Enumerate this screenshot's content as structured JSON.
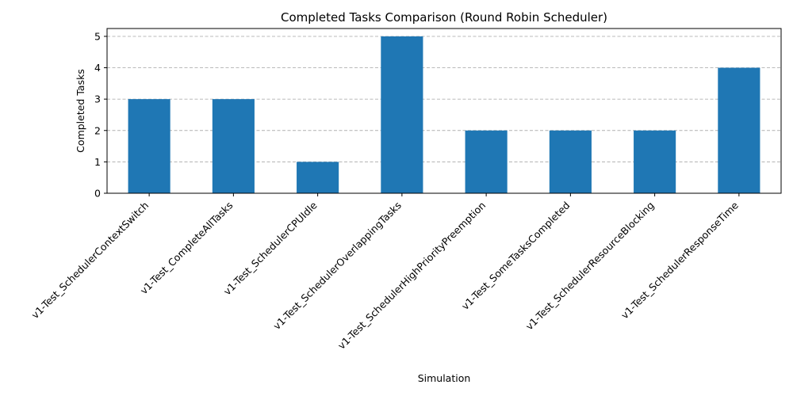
{
  "chart_data": {
    "type": "bar",
    "title": "Completed Tasks Comparison (Round Robin Scheduler)",
    "xlabel": "Simulation",
    "ylabel": "Completed Tasks",
    "categories": [
      "v1-Test_SchedulerContextSwitch",
      "v1-Test_CompleteAllTasks",
      "v1-Test_SchedulerCPUIdle",
      "v1-Test_SchedulerOverlappingTasks",
      "v1-Test_SchedulerHighPriorityPreemption",
      "v1-Test_SomeTasksCompleted",
      "v1-Test_SchedulerResourceBlocking",
      "v1-Test_SchedulerResponseTime"
    ],
    "values": [
      3,
      3,
      1,
      5,
      2,
      2,
      2,
      4
    ],
    "ylim": [
      0,
      5.25
    ],
    "yticks": [
      0,
      1,
      2,
      3,
      4,
      5
    ],
    "grid": "y-dashed",
    "bar_color": "#1f77b4",
    "grid_color": "#b0b0b0"
  }
}
